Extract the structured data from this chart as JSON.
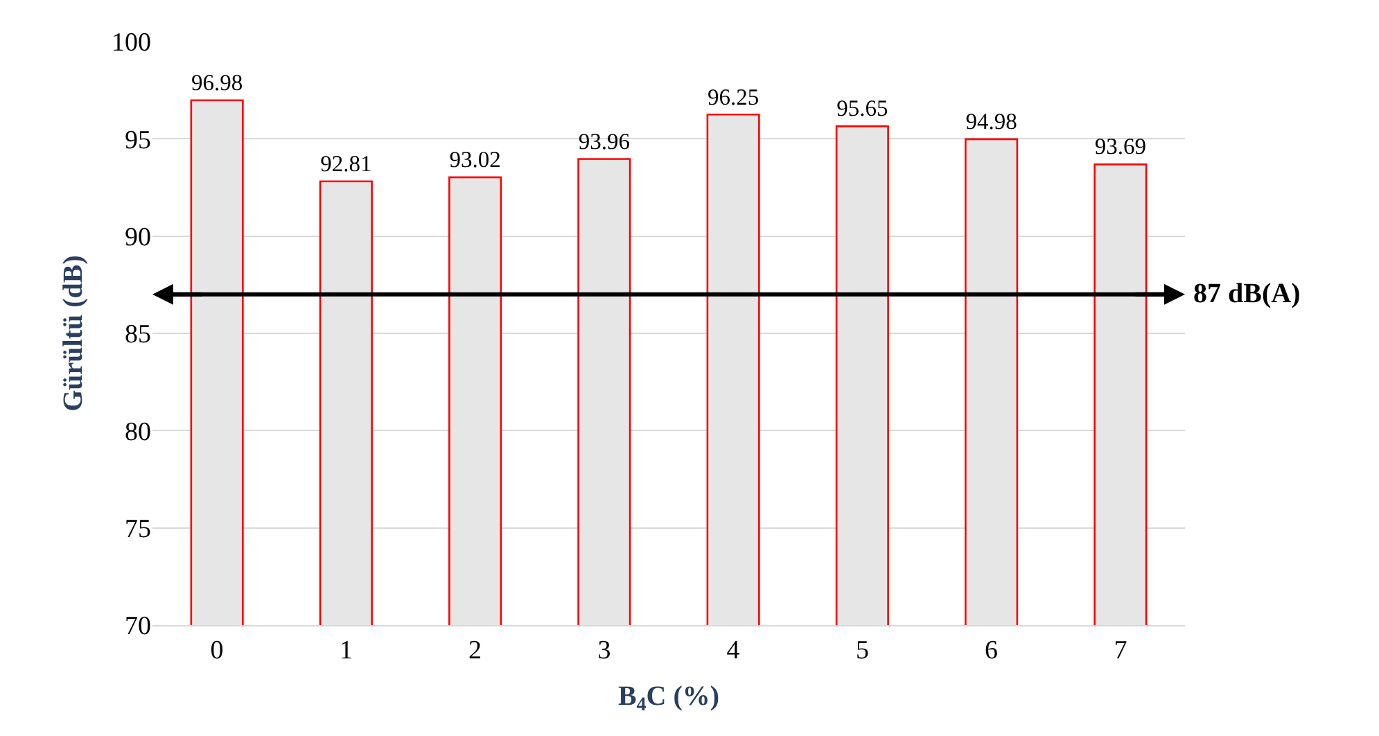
{
  "chart_data": {
    "type": "bar",
    "xlabel": "B$_{4}$C (%)",
    "ylabel": "Gürültü (dB)",
    "categories": [
      "0",
      "1",
      "2",
      "3",
      "4",
      "5",
      "6",
      "7"
    ],
    "values": [
      96.98,
      92.81,
      93.02,
      93.96,
      96.25,
      95.65,
      94.98,
      93.69
    ],
    "color": "#e6e6e6",
    "data_labels": true,
    "ylim": [
      70,
      100
    ],
    "yticks": [
      70,
      75,
      80,
      85,
      90,
      95,
      100
    ],
    "grid": "y",
    "legend": false,
    "ref_lines": [
      {
        "axis": "y",
        "value": 87,
        "label": "87 dB(A)",
        "color": "#000000",
        "line_style": "solid"
      }
    ]
  }
}
